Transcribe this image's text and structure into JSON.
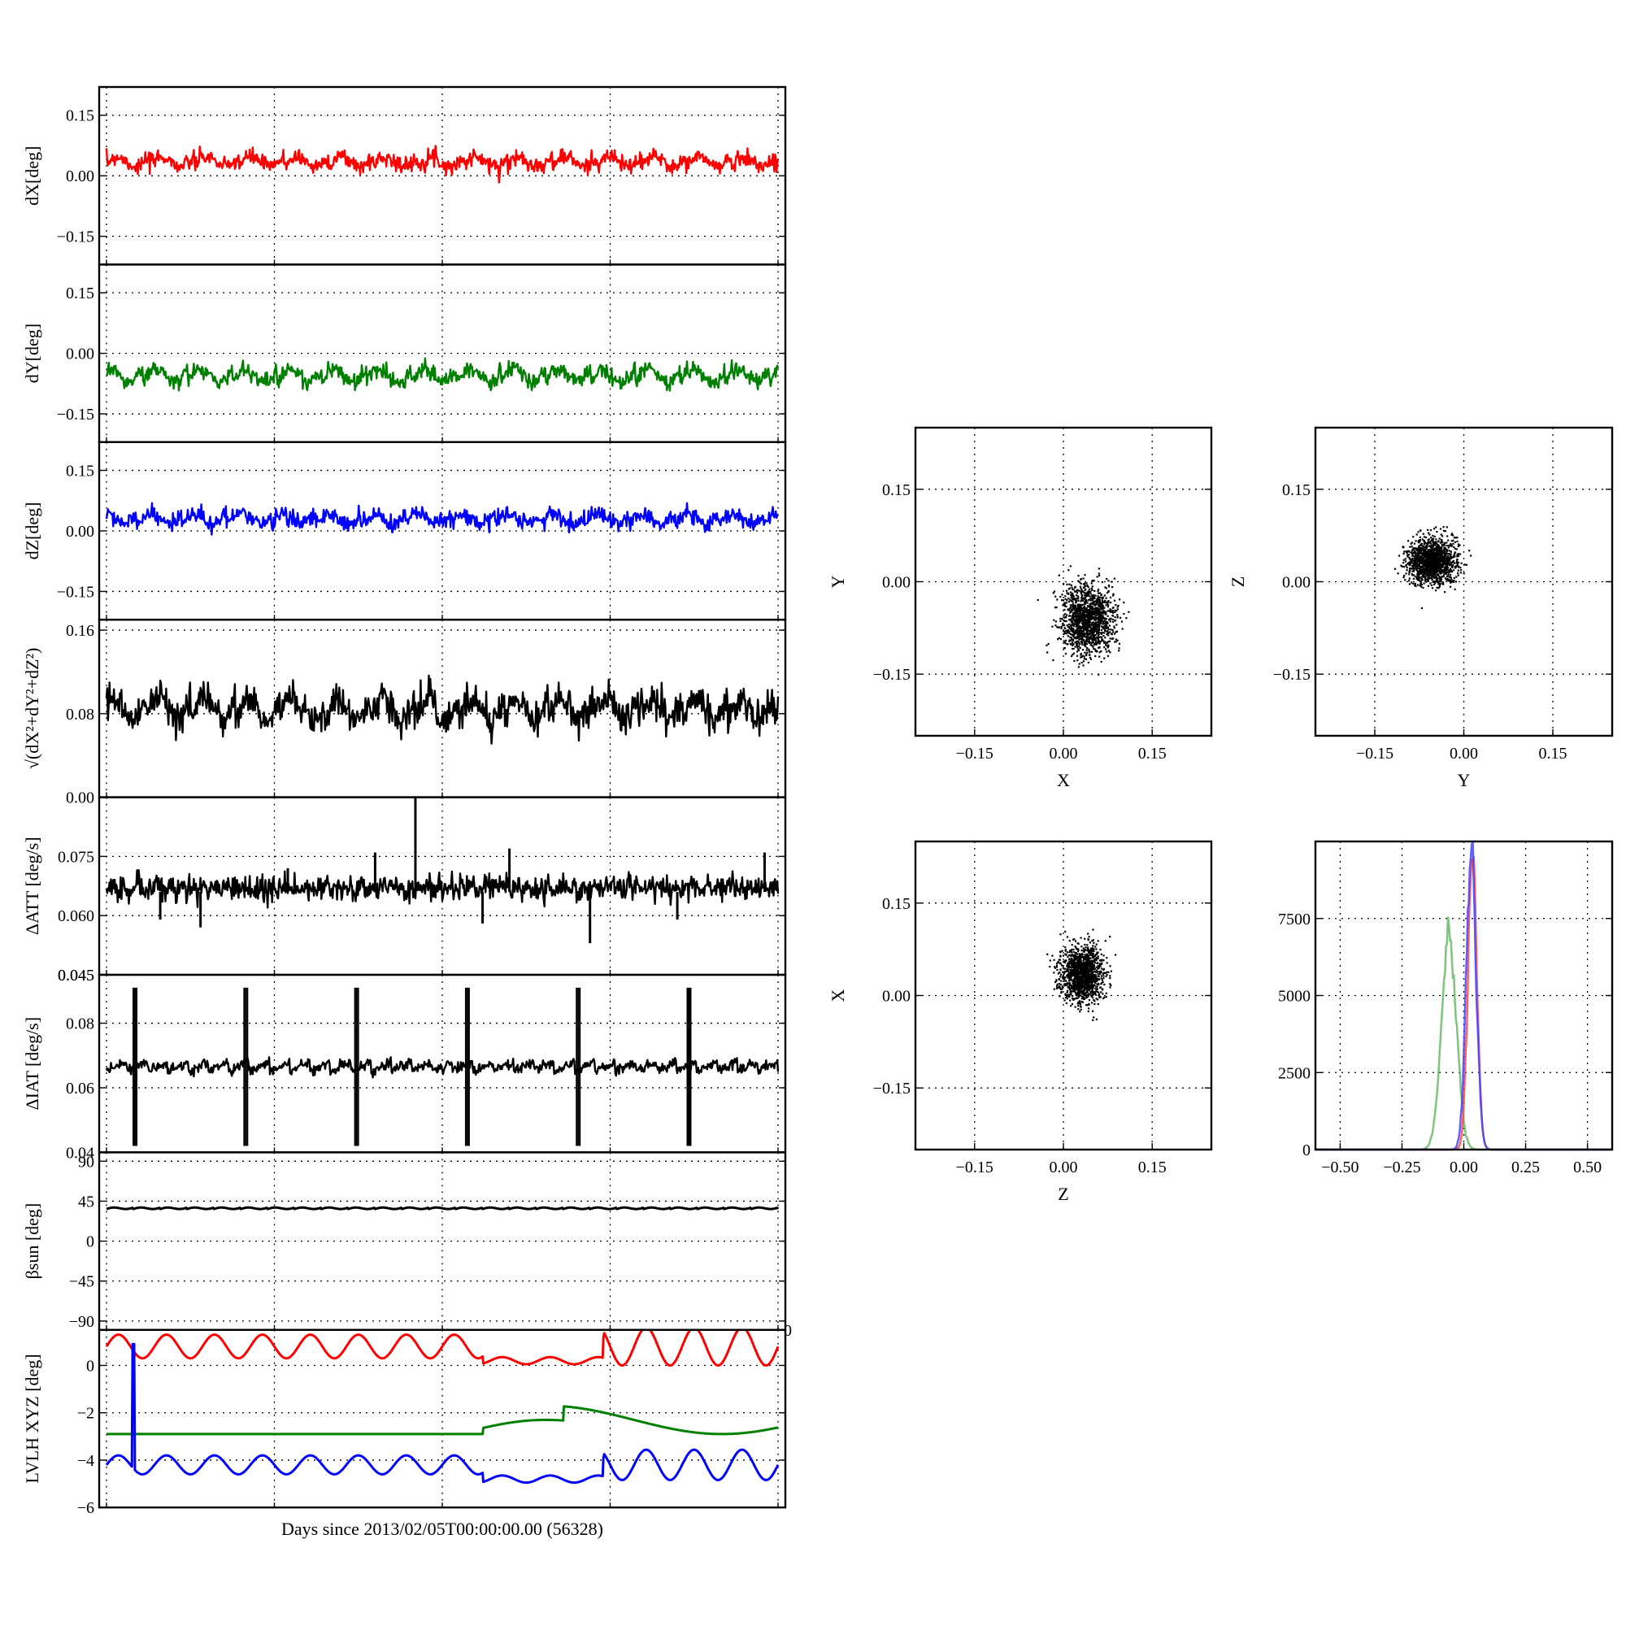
{
  "figure": {
    "shared_xlabel": "Days since 2013/02/05T00:00:00.00 (56328)"
  },
  "chart_data": [
    {
      "id": "dx",
      "type": "line",
      "ylabel": "dX[deg]",
      "ylim": [
        -0.22,
        0.22
      ],
      "yticks": [
        0.15,
        0.0,
        -0.15
      ],
      "ytick_labels": [
        "0.15",
        "0.00",
        "−0.15"
      ],
      "grid": true,
      "series": [
        {
          "color": "#ff0000",
          "baseline": 0.035,
          "amplitude": 0.03,
          "cycles": 15,
          "phase": 0.3,
          "noise": 0.01
        }
      ]
    },
    {
      "id": "dy",
      "type": "line",
      "ylabel": "dY[deg]",
      "ylim": [
        -0.22,
        0.22
      ],
      "yticks": [
        0.15,
        0.0,
        -0.15
      ],
      "ytick_labels": [
        "0.15",
        "0.00",
        "−0.15"
      ],
      "grid": true,
      "series": [
        {
          "color": "#008000",
          "baseline": -0.055,
          "amplitude": 0.04,
          "cycles": 15,
          "phase": 1.2,
          "noise": 0.01
        }
      ]
    },
    {
      "id": "dz",
      "type": "line",
      "ylabel": "dZ[deg]",
      "ylim": [
        -0.22,
        0.22
      ],
      "yticks": [
        0.15,
        0.0,
        -0.15
      ],
      "ytick_labels": [
        "0.15",
        "0.00",
        "−0.15"
      ],
      "grid": true,
      "series": [
        {
          "color": "#0000ff",
          "baseline": 0.03,
          "amplitude": 0.03,
          "cycles": 15,
          "phase": 2.0,
          "noise": 0.01
        }
      ]
    },
    {
      "id": "total",
      "type": "line",
      "ylabel": "√(dX²+dY²+dZ²)",
      "ylim": [
        0.0,
        0.17
      ],
      "yticks": [
        0.16,
        0.08,
        0.0
      ],
      "ytick_labels": [
        "0.16",
        "0.08",
        "0.00"
      ],
      "grid": true,
      "series": [
        {
          "color": "#000000",
          "baseline": 0.085,
          "amplitude": 0.025,
          "cycles": 15,
          "phase": 0.8,
          "noise": 0.008
        }
      ]
    },
    {
      "id": "datt",
      "type": "line",
      "ylabel": "ΔATT [deg/s]",
      "ylim": [
        0.045,
        0.09
      ],
      "yticks": [
        0.075,
        0.06,
        0.045
      ],
      "ytick_labels": [
        "0.075",
        "0.060",
        "0.045"
      ],
      "extra_tick_label": "0.045",
      "grid": true,
      "series": [
        {
          "color": "#000000",
          "baseline": 0.066,
          "amplitude": 0.001,
          "cycles": 60,
          "phase": 0.0,
          "noise": 0.0015
        }
      ],
      "spikes": [
        {
          "x": 0.46,
          "y": 0.09
        },
        {
          "x": 0.4,
          "y": 0.076
        },
        {
          "x": 0.6,
          "y": 0.077
        },
        {
          "x": 0.27,
          "y": 0.072
        },
        {
          "x": 0.98,
          "y": 0.076
        },
        {
          "x": 0.08,
          "y": 0.059
        },
        {
          "x": 0.14,
          "y": 0.057
        },
        {
          "x": 0.72,
          "y": 0.053
        },
        {
          "x": 0.85,
          "y": 0.059
        },
        {
          "x": 0.56,
          "y": 0.058
        }
      ]
    },
    {
      "id": "diat",
      "type": "line",
      "ylabel": "ΔIAT [deg/s]",
      "ylim": [
        0.04,
        0.095
      ],
      "yticks": [
        0.08,
        0.06,
        0.04
      ],
      "ytick_labels": [
        "0.08",
        "0.06",
        "0.04"
      ],
      "grid": true,
      "series": [
        {
          "color": "#000000",
          "baseline": 0.065,
          "amplitude": 0.0015,
          "cycles": 33,
          "phase": 0.0,
          "noise": 0.0008
        }
      ],
      "bursts": [
        0.04,
        0.205,
        0.37,
        0.535,
        0.7,
        0.865
      ],
      "burst_range": [
        0.042,
        0.091
      ]
    },
    {
      "id": "beta",
      "type": "line",
      "ylabel": "βsun [deg]",
      "ylim": [
        -100,
        100
      ],
      "yticks": [
        90,
        45,
        0,
        -45,
        -90
      ],
      "ytick_labels": [
        "90",
        "45",
        "0",
        "−45",
        "−90"
      ],
      "grid": true,
      "series": [
        {
          "color": "#000000",
          "baseline": 37,
          "amplitude": 2,
          "cycles": 25,
          "phase": 0.0,
          "noise": 0
        }
      ]
    },
    {
      "id": "lvlh",
      "type": "line",
      "ylabel": "LVLH XYZ [deg]",
      "ylim": [
        -6,
        1.5
      ],
      "yticks": [
        0,
        -2,
        -4,
        -6
      ],
      "ytick_labels": [
        "0",
        "−2",
        "−4",
        "−6"
      ],
      "extra_tick_label": "0",
      "grid": true,
      "series": [
        {
          "color": "#ff0000",
          "baseline": 0.8,
          "amplitude": 0.5,
          "cycles": 14,
          "phase": 0.0,
          "noise": 0
        },
        {
          "color": "#008000",
          "baseline": -2.9,
          "amplitude": 0.0,
          "cycles": 1,
          "phase": 0.0,
          "noise": 0
        },
        {
          "color": "#0000ff",
          "baseline": -4.2,
          "amplitude": 0.4,
          "cycles": 14,
          "phase": 0.0,
          "noise": 0
        }
      ]
    },
    {
      "id": "xy_scatter",
      "type": "scatter",
      "xlabel": "X",
      "ylabel": "Y",
      "xlim": [
        -0.25,
        0.25
      ],
      "ylim": [
        -0.25,
        0.25
      ],
      "xticks": [
        -0.15,
        0.0,
        0.15
      ],
      "yticks": [
        0.15,
        0.0,
        -0.15
      ],
      "xtick_labels": [
        "−0.15",
        "0.00",
        "0.15"
      ],
      "ytick_labels": [
        "0.15",
        "0.00",
        "−0.15"
      ],
      "grid": true,
      "cloud": {
        "cx": 0.04,
        "cy": -0.06,
        "sx": 0.022,
        "sy": 0.028,
        "n": 1400
      }
    },
    {
      "id": "yz_scatter",
      "type": "scatter",
      "xlabel": "Y",
      "ylabel": "Z",
      "xlim": [
        -0.25,
        0.25
      ],
      "ylim": [
        -0.25,
        0.25
      ],
      "xticks": [
        -0.15,
        0.0,
        0.15
      ],
      "yticks": [
        0.15,
        0.0,
        -0.15
      ],
      "xtick_labels": [
        "−0.15",
        "0.00",
        "0.15"
      ],
      "ytick_labels": [
        "0.15",
        "0.00",
        "−0.15"
      ],
      "grid": true,
      "cloud": {
        "cx": -0.055,
        "cy": 0.035,
        "sx": 0.02,
        "sy": 0.018,
        "n": 1400
      }
    },
    {
      "id": "zx_scatter",
      "type": "scatter",
      "xlabel": "Z",
      "ylabel": "X",
      "xlim": [
        -0.25,
        0.25
      ],
      "ylim": [
        -0.25,
        0.25
      ],
      "xticks": [
        -0.15,
        0.0,
        0.15
      ],
      "yticks": [
        0.15,
        0.0,
        -0.15
      ],
      "xtick_labels": [
        "−0.15",
        "0.00",
        "0.15"
      ],
      "ytick_labels": [
        "0.15",
        "0.00",
        "−0.15"
      ],
      "grid": true,
      "cloud": {
        "cx": 0.03,
        "cy": 0.035,
        "sx": 0.018,
        "sy": 0.022,
        "n": 1400
      }
    },
    {
      "id": "histogram",
      "type": "line",
      "xlim": [
        -0.6,
        0.6
      ],
      "ylim": [
        0,
        10000
      ],
      "xticks": [
        -0.5,
        -0.25,
        0.0,
        0.25,
        0.5
      ],
      "yticks": [
        7500,
        5000,
        2500,
        0
      ],
      "xtick_labels": [
        "−0.50",
        "−0.25",
        "0.00",
        "0.25",
        "0.50"
      ],
      "ytick_labels": [
        "7500",
        "5000",
        "2500",
        "0"
      ],
      "grid": true,
      "series": [
        {
          "color": "#66bb66",
          "center": -0.06,
          "width": 0.03,
          "peak": 6900
        },
        {
          "color": "#ff4444",
          "center": 0.035,
          "width": 0.018,
          "peak": 9600
        },
        {
          "color": "#4444ff",
          "center": 0.03,
          "width": 0.02,
          "peak": 9400
        }
      ]
    }
  ]
}
